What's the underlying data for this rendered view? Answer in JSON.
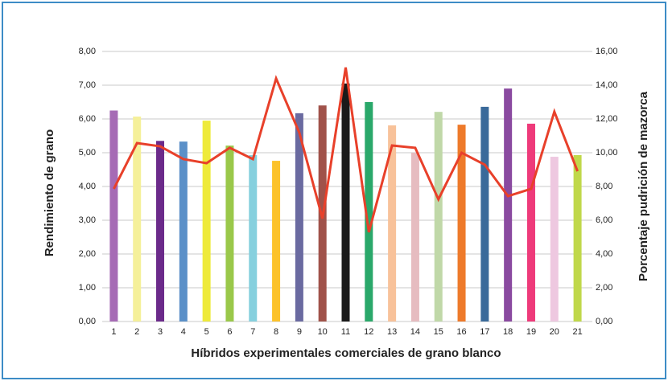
{
  "chart_data": {
    "type": "bar-line",
    "x_label": "Híbridos experimentales comerciales de grano blanco",
    "y_label": "Rendimiento de grano",
    "y2_label": "Porcentaje pudrición de mazorca",
    "categories": [
      "1",
      "2",
      "3",
      "4",
      "5",
      "6",
      "7",
      "8",
      "9",
      "10",
      "11",
      "12",
      "13",
      "14",
      "15",
      "16",
      "17",
      "18",
      "19",
      "20",
      "21"
    ],
    "series": [
      {
        "type": "bar",
        "axis": "y",
        "values": [
          6.25,
          6.07,
          5.35,
          5.33,
          5.95,
          5.21,
          4.93,
          4.76,
          6.17,
          6.4,
          7.05,
          6.5,
          5.81,
          5.0,
          6.21,
          5.83,
          6.36,
          6.9,
          5.86,
          4.88,
          4.93
        ],
        "colors": [
          "#a66bb5",
          "#f5f09a",
          "#6b2a8a",
          "#5b90c8",
          "#eeea3a",
          "#9ac84a",
          "#86d0de",
          "#fcc22a",
          "#6a6aa0",
          "#a0524a",
          "#1a1a1a",
          "#2aa86a",
          "#f8c29a",
          "#e6bcc0",
          "#c0d8a8",
          "#ee7a2a",
          "#3a6a9a",
          "#8a4aa0",
          "#ee3a7a",
          "#eec8e0",
          "#c0d84a"
        ]
      },
      {
        "type": "line",
        "axis": "y2",
        "color": "#e8402a",
        "values": [
          7.86,
          10.57,
          10.38,
          9.62,
          9.38,
          10.29,
          9.62,
          14.4,
          11.19,
          6.1,
          15.05,
          5.29,
          10.43,
          10.29,
          7.24,
          10.0,
          9.29,
          7.43,
          7.86,
          12.43,
          8.9
        ]
      }
    ],
    "ylim": [
      0,
      8
    ],
    "yticks": [
      {
        "value": 0,
        "label": "0,00"
      },
      {
        "value": 1,
        "label": "1,00"
      },
      {
        "value": 2,
        "label": "2,00"
      },
      {
        "value": 3,
        "label": "3,00"
      },
      {
        "value": 4,
        "label": "4,00"
      },
      {
        "value": 5,
        "label": "5,00"
      },
      {
        "value": 6,
        "label": "6,00"
      },
      {
        "value": 7,
        "label": "7,00"
      },
      {
        "value": 8,
        "label": "8,00"
      }
    ],
    "y2lim": [
      0,
      16
    ],
    "y2ticks": [
      {
        "value": 0,
        "label": "0,00"
      },
      {
        "value": 2,
        "label": "2,00"
      },
      {
        "value": 4,
        "label": "4,00"
      },
      {
        "value": 6,
        "label": "6,00"
      },
      {
        "value": 8,
        "label": "8,00"
      },
      {
        "value": 10,
        "label": "10,00"
      },
      {
        "value": 12,
        "label": "12,00"
      },
      {
        "value": 14,
        "label": "14,00"
      },
      {
        "value": 16,
        "label": "16,00"
      }
    ],
    "grid": true
  }
}
